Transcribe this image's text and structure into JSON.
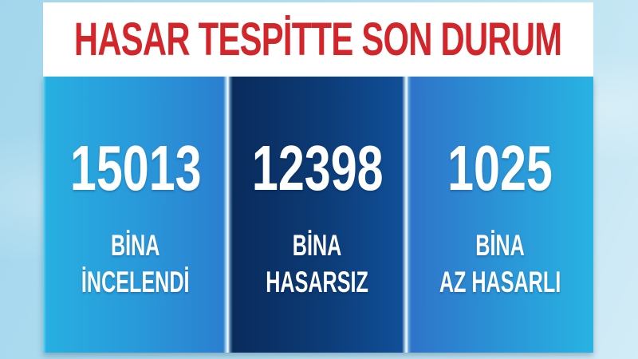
{
  "header": {
    "title": "HASAR TESPİTTE SON DURUM"
  },
  "stats": [
    {
      "value": "15013",
      "label_line1": "BİNA",
      "label_line2": "İNCELENDİ"
    },
    {
      "value": "12398",
      "label_line1": "BİNA",
      "label_line2": "HASARSIZ"
    },
    {
      "value": "1025",
      "label_line1": "BİNA",
      "label_line2": "AZ HASARLI"
    }
  ],
  "colors": {
    "title_red": "#d2262b",
    "header_background": "#ffffff",
    "page_background": "#aedcf0",
    "panel1_gradient": [
      "#27b0e1",
      "#2b7ecf"
    ],
    "panel2_gradient": [
      "#092a5b",
      "#10509a"
    ],
    "panel3_gradient": [
      "#2f72c8",
      "#28b3e2"
    ],
    "stat_text": "#ffffff"
  },
  "chart_data": {
    "type": "table",
    "title": "HASAR TESPİTTE SON DURUM",
    "categories": [
      "BİNA İNCELENDİ",
      "BİNA HASARSIZ",
      "BİNA AZ HASARLI"
    ],
    "values": [
      15013,
      12398,
      1025
    ],
    "legend_position": "none",
    "notes": "Full-screen TV news statistics card with three blue panels"
  }
}
